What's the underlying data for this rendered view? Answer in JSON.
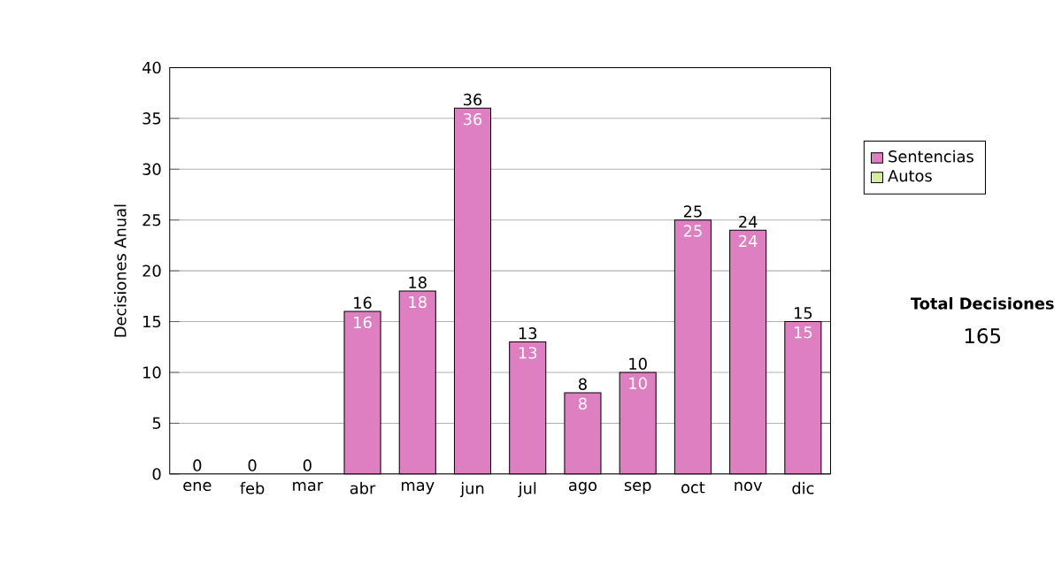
{
  "chart_data": {
    "type": "bar",
    "stacked": true,
    "ylabel": "Decisiones Anual",
    "categories": [
      "ene",
      "feb",
      "mar",
      "abr",
      "may",
      "jun",
      "jul",
      "ago",
      "sep",
      "oct",
      "nov",
      "dic"
    ],
    "series": [
      {
        "name": "Sentencias",
        "color": "#dd7fc0",
        "values": [
          0,
          0,
          0,
          16,
          18,
          36,
          13,
          8,
          10,
          25,
          24,
          15
        ],
        "value_labels": [
          null,
          null,
          null,
          "16",
          "18",
          "36",
          "13",
          "8",
          "10",
          "25",
          "24",
          "15"
        ]
      },
      {
        "name": "Autos",
        "color": "#d8eca0",
        "values": [
          0,
          0,
          0,
          0,
          0,
          0,
          0,
          0,
          0,
          0,
          0,
          0
        ]
      }
    ],
    "totals": [
      "0",
      "0",
      "0",
      "16",
      "18",
      "36",
      "13",
      "8",
      "10",
      "25",
      "24",
      "15"
    ],
    "ylim": [
      0,
      40
    ],
    "yticks": [
      0,
      5,
      10,
      15,
      20,
      25,
      30,
      35,
      40
    ],
    "grid": "y",
    "legend": "right",
    "annotations": [
      "Total Decisiones",
      "165"
    ]
  }
}
